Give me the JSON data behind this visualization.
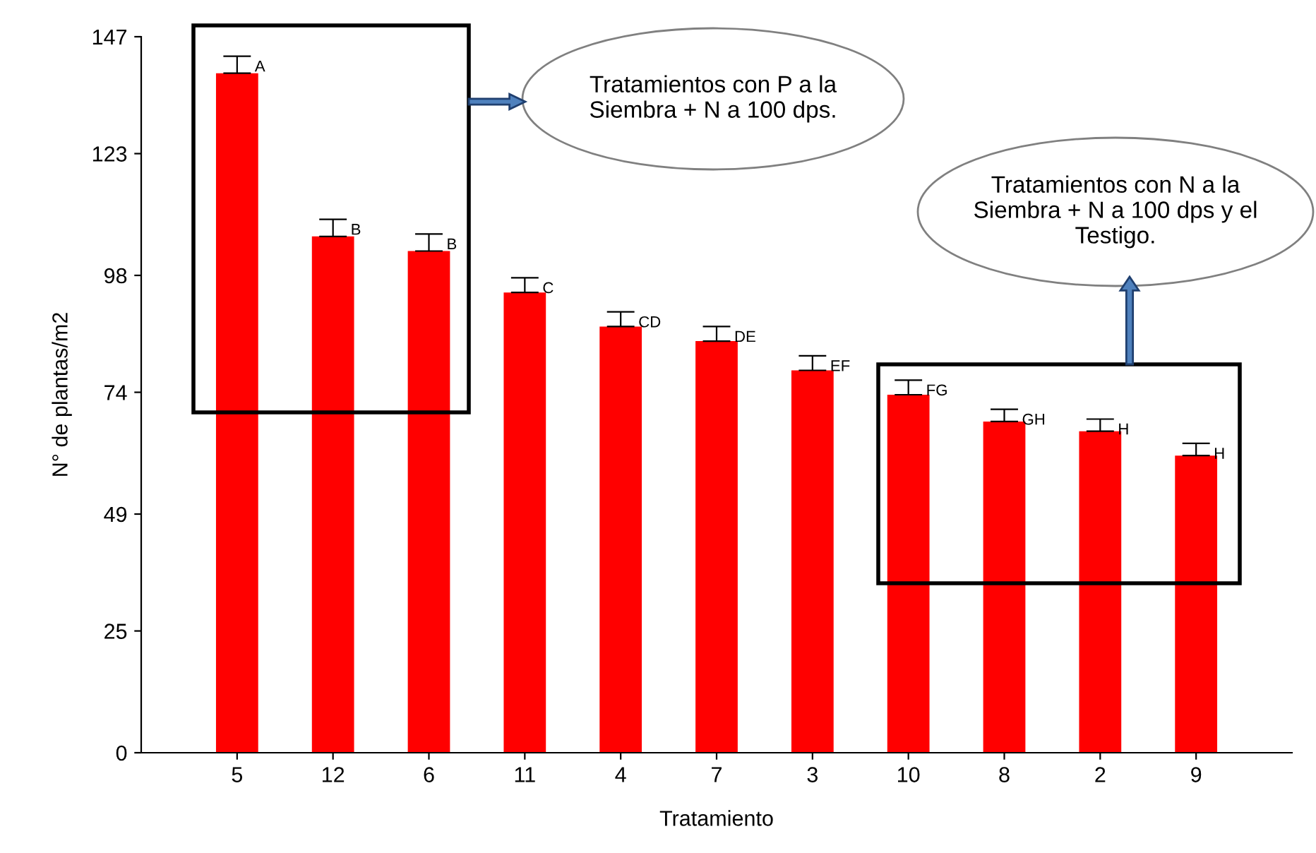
{
  "chart_data": {
    "type": "bar",
    "xlabel": "Tratamiento",
    "ylabel": "N° de plantas/m2",
    "categories": [
      "5",
      "12",
      "6",
      "11",
      "4",
      "7",
      "3",
      "10",
      "8",
      "2",
      "9"
    ],
    "values": [
      139.5,
      106,
      103,
      94.5,
      87.5,
      84.5,
      78.5,
      73.5,
      68,
      66,
      61
    ],
    "errors": [
      [
        139.5,
        143
      ],
      [
        106,
        109.5
      ],
      [
        103,
        106.5
      ],
      [
        94.5,
        97.5
      ],
      [
        87.5,
        90.5
      ],
      [
        84.5,
        87.5
      ],
      [
        78.5,
        81.5
      ],
      [
        73.5,
        76.5
      ],
      [
        68,
        70.5
      ],
      [
        66,
        68.5
      ],
      [
        61,
        63.5
      ]
    ],
    "color": "#ff0000",
    "ylim": [
      0,
      147
    ],
    "yticks": [
      0,
      25,
      49,
      74,
      98,
      123,
      147
    ],
    "grid": false,
    "legend": false,
    "annotations": [
      {
        "text": "A",
        "x": "5",
        "y": 143
      },
      {
        "text": "B",
        "x": "12",
        "y": 109.5
      },
      {
        "text": "B",
        "x": "6",
        "y": 106.5
      },
      {
        "text": "C",
        "x": "11",
        "y": 97.5
      },
      {
        "text": "CD",
        "x": "4",
        "y": 90.5
      },
      {
        "text": "DE",
        "x": "7",
        "y": 87.5
      },
      {
        "text": "EF",
        "x": "3",
        "y": 81.5
      },
      {
        "text": "FG",
        "x": "10",
        "y": 76.5
      },
      {
        "text": "GH",
        "x": "8",
        "y": 70.5
      },
      {
        "text": "H",
        "x": "2",
        "y": 68.5
      },
      {
        "text": "H",
        "x": "9",
        "y": 63.5
      },
      "Tratamientos con P a la Siembra + N a 100 dps.",
      "Tratamientos con N a la Siembra + N a 100 dps y el Testigo."
    ]
  }
}
